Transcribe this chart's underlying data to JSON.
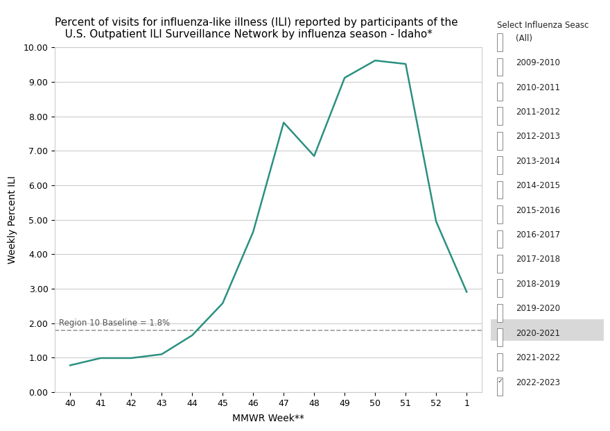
{
  "title": "Percent of visits for influenza-like illness (ILI) reported by participants of the\n   U.S. Outpatient ILI Surveillance Network by influenza season - Idaho*",
  "xlabel": "MMWR Week**",
  "ylabel": "Weekly Percent ILI",
  "x_labels": [
    "40",
    "41",
    "42",
    "43",
    "44",
    "45",
    "46",
    "47",
    "48",
    "49",
    "50",
    "51",
    "52",
    "1"
  ],
  "x_values": [
    0,
    1,
    2,
    3,
    4,
    5,
    6,
    7,
    8,
    9,
    10,
    11,
    12,
    13
  ],
  "y_values": [
    0.78,
    0.99,
    0.99,
    1.1,
    1.65,
    2.58,
    4.65,
    7.82,
    6.85,
    9.12,
    9.62,
    9.52,
    4.95,
    2.91
  ],
  "line_color": "#2a9080",
  "baseline_value": 1.8,
  "baseline_label": "Region 10 Baseline = 1.8%",
  "baseline_color": "#999999",
  "ylim": [
    0.0,
    10.0
  ],
  "yticks": [
    0.0,
    1.0,
    2.0,
    3.0,
    4.0,
    5.0,
    6.0,
    7.0,
    8.0,
    9.0,
    10.0
  ],
  "background_color": "#ffffff",
  "plot_background_color": "#ffffff",
  "grid_color": "#cccccc",
  "title_fontsize": 11,
  "axis_label_fontsize": 10,
  "tick_fontsize": 9,
  "sidebar_title": "Select Influenza Seasc",
  "sidebar_items": [
    {
      "label": "(All)",
      "checked": false,
      "highlighted": false
    },
    {
      "label": "2009-2010",
      "checked": false,
      "highlighted": false
    },
    {
      "label": "2010-2011",
      "checked": false,
      "highlighted": false
    },
    {
      "label": "2011-2012",
      "checked": false,
      "highlighted": false
    },
    {
      "label": "2012-2013",
      "checked": false,
      "highlighted": false
    },
    {
      "label": "2013-2014",
      "checked": false,
      "highlighted": false
    },
    {
      "label": "2014-2015",
      "checked": false,
      "highlighted": false
    },
    {
      "label": "2015-2016",
      "checked": false,
      "highlighted": false
    },
    {
      "label": "2016-2017",
      "checked": false,
      "highlighted": false
    },
    {
      "label": "2017-2018",
      "checked": false,
      "highlighted": false
    },
    {
      "label": "2018-2019",
      "checked": false,
      "highlighted": false
    },
    {
      "label": "2019-2020",
      "checked": false,
      "highlighted": false
    },
    {
      "label": "2020-2021",
      "checked": false,
      "highlighted": true
    },
    {
      "label": "2021-2022",
      "checked": false,
      "highlighted": false
    },
    {
      "label": "2022-2023",
      "checked": true,
      "highlighted": false
    }
  ]
}
